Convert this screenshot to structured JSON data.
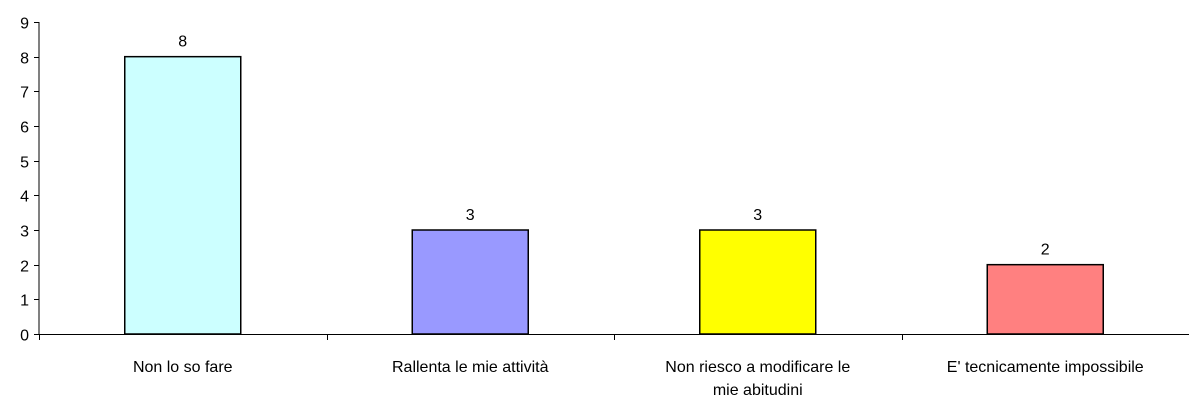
{
  "chart_data": {
    "type": "bar",
    "title": "",
    "xlabel": "",
    "ylabel": "",
    "ylim": [
      0,
      9
    ],
    "yticks": [
      0,
      1,
      2,
      3,
      4,
      5,
      6,
      7,
      8,
      9
    ],
    "grid": false,
    "legend": "none",
    "categories": [
      [
        "Non lo so fare"
      ],
      [
        "Rallenta le mie attività"
      ],
      [
        "Non riesco a modificare le",
        "mie abitudini"
      ],
      [
        "E' tecnicamente impossibile"
      ]
    ],
    "values": [
      8,
      3,
      3,
      2
    ],
    "data_labels": [
      "8",
      "3",
      "3",
      "2"
    ],
    "colors": [
      "#CCFFFF",
      "#9999FF",
      "#FFFF00",
      "#FF8080"
    ]
  }
}
